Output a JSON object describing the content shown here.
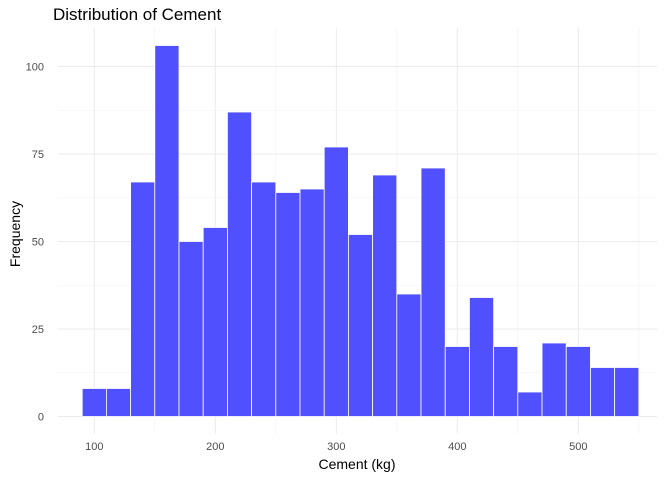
{
  "chart_data": {
    "type": "bar",
    "title": "Distribution of Cement",
    "xlabel": "Cement (kg)",
    "ylabel": "Frequency",
    "xlim": [
      70,
      565
    ],
    "ylim": [
      -5,
      111
    ],
    "x_ticks": [
      100,
      200,
      300,
      400,
      500
    ],
    "y_ticks": [
      0,
      25,
      50,
      75,
      100
    ],
    "grid": true,
    "bar_color": "#5050ff",
    "bar_edge_color": "#ffffff",
    "bins": [
      {
        "start": 90,
        "end": 110,
        "count": 8
      },
      {
        "start": 110,
        "end": 130,
        "count": 8
      },
      {
        "start": 130,
        "end": 150,
        "count": 67
      },
      {
        "start": 150,
        "end": 170,
        "count": 106
      },
      {
        "start": 170,
        "end": 190,
        "count": 50
      },
      {
        "start": 190,
        "end": 210,
        "count": 54
      },
      {
        "start": 210,
        "end": 230,
        "count": 87
      },
      {
        "start": 230,
        "end": 250,
        "count": 67
      },
      {
        "start": 250,
        "end": 270,
        "count": 64
      },
      {
        "start": 270,
        "end": 290,
        "count": 65
      },
      {
        "start": 290,
        "end": 310,
        "count": 77
      },
      {
        "start": 310,
        "end": 330,
        "count": 52
      },
      {
        "start": 330,
        "end": 350,
        "count": 69
      },
      {
        "start": 350,
        "end": 370,
        "count": 35
      },
      {
        "start": 370,
        "end": 390,
        "count": 71
      },
      {
        "start": 390,
        "end": 410,
        "count": 20
      },
      {
        "start": 410,
        "end": 430,
        "count": 34
      },
      {
        "start": 430,
        "end": 450,
        "count": 20
      },
      {
        "start": 450,
        "end": 470,
        "count": 7
      },
      {
        "start": 470,
        "end": 490,
        "count": 21
      },
      {
        "start": 490,
        "end": 510,
        "count": 20
      },
      {
        "start": 510,
        "end": 530,
        "count": 14
      },
      {
        "start": 530,
        "end": 550,
        "count": 14
      }
    ]
  }
}
